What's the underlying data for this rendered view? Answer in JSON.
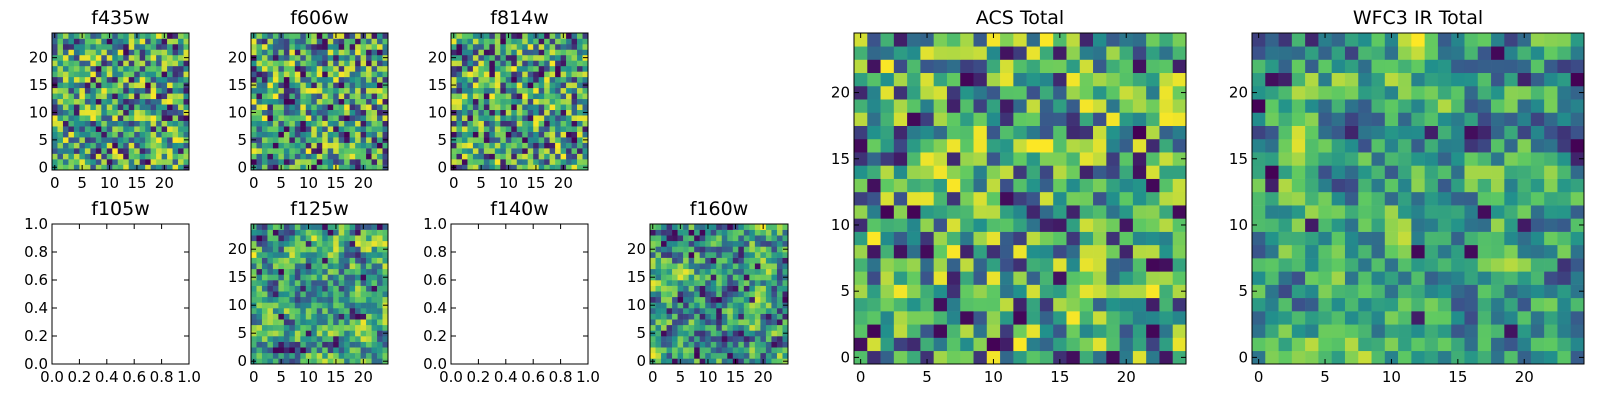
{
  "chart_data": [
    {
      "type": "heatmap",
      "title": "f435w",
      "xticks": [
        "0",
        "5",
        "10",
        "15",
        "20"
      ],
      "yticks": [
        "0",
        "5",
        "10",
        "15",
        "20"
      ],
      "size": 25,
      "seed": 435,
      "empty": false,
      "smooth": false
    },
    {
      "type": "heatmap",
      "title": "f606w",
      "xticks": [
        "0",
        "5",
        "10",
        "15",
        "20"
      ],
      "yticks": [
        "0",
        "5",
        "10",
        "15",
        "20"
      ],
      "size": 25,
      "seed": 606,
      "empty": false,
      "smooth": false
    },
    {
      "type": "heatmap",
      "title": "f814w",
      "xticks": [
        "0",
        "5",
        "10",
        "15",
        "20"
      ],
      "yticks": [
        "0",
        "5",
        "10",
        "15",
        "20"
      ],
      "size": 25,
      "seed": 814,
      "empty": false,
      "smooth": false
    },
    {
      "type": "heatmap",
      "title": "f105w",
      "xticks": [
        "0.0",
        "0.2",
        "0.4",
        "0.6",
        "0.8",
        "1.0"
      ],
      "yticks": [
        "0.0",
        "0.2",
        "0.4",
        "0.6",
        "0.8",
        "1.0"
      ],
      "size": 0,
      "seed": 105,
      "empty": true,
      "smooth": false
    },
    {
      "type": "heatmap",
      "title": "f125w",
      "xticks": [
        "0",
        "5",
        "10",
        "15",
        "20"
      ],
      "yticks": [
        "0",
        "5",
        "10",
        "15",
        "20"
      ],
      "size": 25,
      "seed": 125,
      "empty": false,
      "smooth": true
    },
    {
      "type": "heatmap",
      "title": "f140w",
      "xticks": [
        "0.0",
        "0.2",
        "0.4",
        "0.6",
        "0.8",
        "1.0"
      ],
      "yticks": [
        "0.0",
        "0.2",
        "0.4",
        "0.6",
        "0.8",
        "1.0"
      ],
      "size": 0,
      "seed": 140,
      "empty": true,
      "smooth": false
    },
    {
      "type": "heatmap",
      "title": "f160w",
      "xticks": [
        "0",
        "5",
        "10",
        "15",
        "20"
      ],
      "yticks": [
        "0",
        "5",
        "10",
        "15",
        "20"
      ],
      "size": 25,
      "seed": 160,
      "empty": false,
      "smooth": true
    },
    {
      "type": "heatmap",
      "title": "ACS Total",
      "xticks": [
        "0",
        "5",
        "10",
        "15",
        "20"
      ],
      "yticks": [
        "0",
        "5",
        "10",
        "15",
        "20"
      ],
      "size": 25,
      "seed": 1001,
      "empty": false,
      "smooth": false
    },
    {
      "type": "heatmap",
      "title": "WFC3 IR Total",
      "xticks": [
        "0",
        "5",
        "10",
        "15",
        "20"
      ],
      "yticks": [
        "0",
        "5",
        "10",
        "15",
        "20"
      ],
      "size": 25,
      "seed": 2002,
      "empty": false,
      "smooth": true
    }
  ],
  "colormap": [
    "#440154",
    "#3b528b",
    "#21918c",
    "#5ec962",
    "#fde725"
  ]
}
